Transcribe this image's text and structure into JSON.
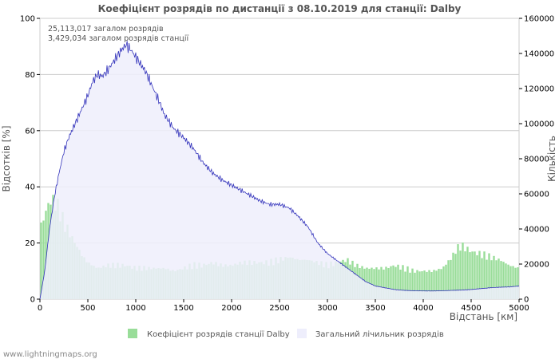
{
  "chart_data": {
    "type": "area",
    "title": "Коефіцієнт розрядів по дистанції з 08.10.2019 для станції: Dalby",
    "xlabel": "Відстань   [км]",
    "ylabel_left": "Відсотків   [%]",
    "ylabel_right": "Кількість",
    "xlim": [
      0,
      5000
    ],
    "ylim_left": [
      0,
      100
    ],
    "ylim_right": [
      0,
      160000
    ],
    "x_ticks": [
      "0",
      "500",
      "1000",
      "1500",
      "2000",
      "2500",
      "3000",
      "3500",
      "4000",
      "4500",
      "5000"
    ],
    "y_left_ticks": [
      "0",
      "20",
      "40",
      "60",
      "80",
      "100"
    ],
    "y_right_ticks": [
      "0",
      "20000",
      "40000",
      "60000",
      "80000",
      "100000",
      "120000",
      "140000",
      "160000"
    ],
    "grid": true,
    "annotations": [
      "25,113,017 загалом розрядів",
      "3,429,034 загалом розрядів станції"
    ],
    "series": [
      {
        "name": "Коефіцієнт розрядів станції Dalby",
        "axis": "left",
        "color": "#99dd99",
        "x": [
          0,
          50,
          100,
          150,
          200,
          250,
          300,
          350,
          400,
          450,
          500,
          550,
          600,
          700,
          800,
          900,
          1000,
          1100,
          1200,
          1300,
          1400,
          1500,
          1600,
          1700,
          1800,
          1900,
          2000,
          2100,
          2200,
          2300,
          2400,
          2500,
          2600,
          2700,
          2800,
          2900,
          3000,
          3100,
          3200,
          3300,
          3400,
          3500,
          3600,
          3700,
          3800,
          3900,
          4000,
          4100,
          4200,
          4300,
          4350,
          4400,
          4500,
          4600,
          4700,
          4800,
          4900,
          5000
        ],
        "values": [
          25,
          30,
          35,
          35,
          32,
          27,
          24,
          21,
          18,
          15,
          13,
          12,
          11,
          12,
          12,
          12,
          11,
          11,
          11,
          11,
          10,
          11,
          12,
          12,
          13,
          12,
          12,
          13,
          13,
          13,
          13,
          14,
          15,
          14,
          14,
          13,
          12,
          13,
          14,
          12,
          11,
          11,
          11,
          12,
          11,
          10,
          10,
          10,
          11,
          15,
          18,
          19,
          17,
          16,
          15,
          14,
          12,
          11
        ]
      },
      {
        "name": "Загальний лічильник розрядів",
        "axis": "right",
        "color": "#eeeefc",
        "x": [
          0,
          50,
          100,
          150,
          200,
          250,
          300,
          350,
          400,
          450,
          500,
          550,
          600,
          650,
          700,
          750,
          800,
          850,
          900,
          950,
          1000,
          1050,
          1100,
          1150,
          1200,
          1250,
          1300,
          1400,
          1500,
          1600,
          1700,
          1800,
          1900,
          2000,
          2100,
          2200,
          2300,
          2400,
          2500,
          2600,
          2700,
          2800,
          2900,
          3000,
          3100,
          3200,
          3300,
          3400,
          3500,
          3600,
          3700,
          3800,
          3900,
          4000,
          4100,
          4200,
          4300,
          4400,
          4500,
          4600,
          4700,
          4800,
          4900,
          5000
        ],
        "values": [
          0,
          16000,
          40000,
          58000,
          72000,
          84000,
          92000,
          98000,
          104000,
          110000,
          116000,
          124000,
          128000,
          127000,
          130000,
          134000,
          138000,
          142000,
          145000,
          142000,
          138000,
          134000,
          130000,
          124000,
          118000,
          112000,
          105000,
          97000,
          92000,
          86000,
          78000,
          72000,
          68000,
          65000,
          62000,
          59000,
          56000,
          54000,
          54000,
          52000,
          47000,
          41000,
          32000,
          26000,
          22000,
          18000,
          14000,
          10000,
          7500,
          6500,
          5500,
          5000,
          4800,
          4700,
          4700,
          4800,
          5000,
          5200,
          5500,
          6000,
          6500,
          6800,
          7000,
          7500
        ]
      }
    ]
  },
  "footer": "www.lightningmaps.org"
}
